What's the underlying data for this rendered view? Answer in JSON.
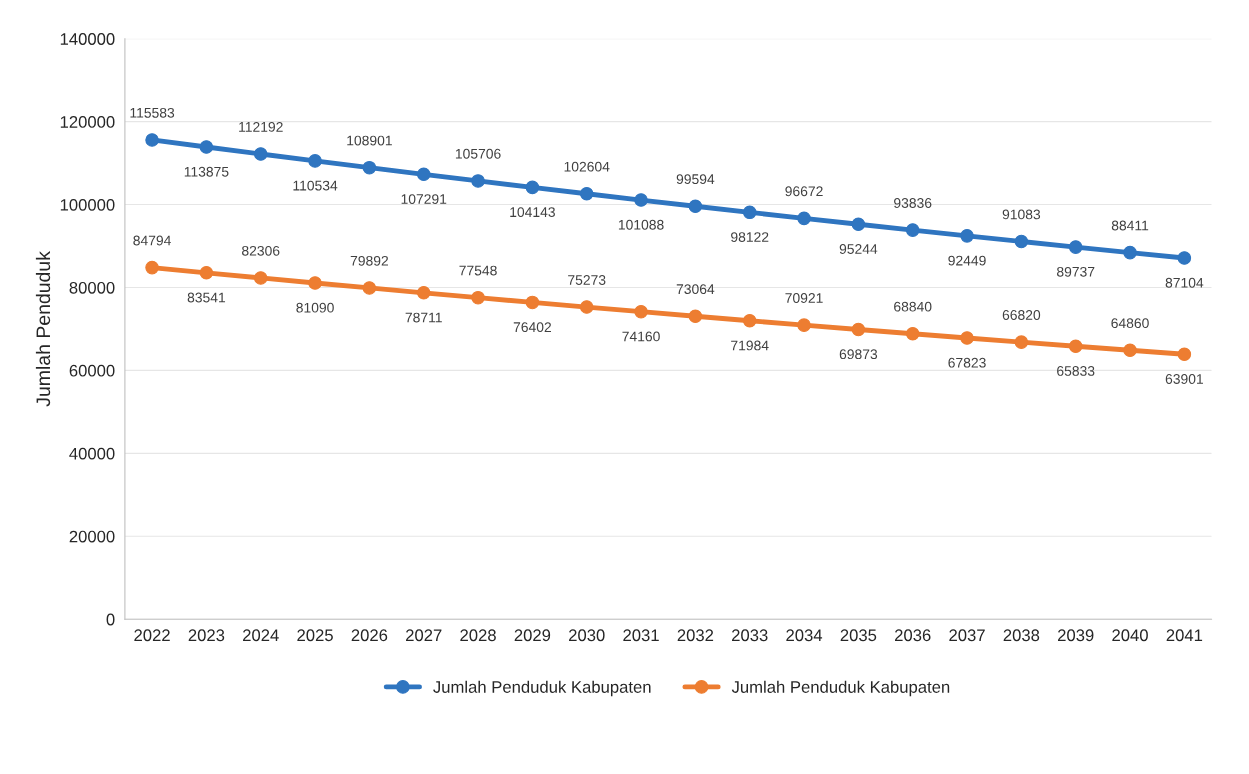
{
  "chart_data": {
    "type": "line",
    "ylabel": "Jumlah Penduduk",
    "categories": [
      "2022",
      "2023",
      "2024",
      "2025",
      "2026",
      "2027",
      "2028",
      "2029",
      "2030",
      "2031",
      "2032",
      "2033",
      "2034",
      "2035",
      "2036",
      "2037",
      "2038",
      "2039",
      "2040",
      "2041"
    ],
    "series": [
      {
        "name": "Jumlah Penduduk Kabupaten",
        "color": "#2f75c0",
        "values": [
          115583,
          113875,
          112192,
          110534,
          108901,
          107291,
          105706,
          104143,
          102604,
          101088,
          99594,
          98122,
          96672,
          95244,
          93836,
          92449,
          91083,
          89737,
          88411,
          87104
        ]
      },
      {
        "name": "Jumlah Penduduk Kabupaten",
        "color": "#ed7d31",
        "values": [
          84794,
          83541,
          82306,
          81090,
          79892,
          78711,
          77548,
          76402,
          75273,
          74160,
          73064,
          71984,
          70921,
          69873,
          68840,
          67823,
          66820,
          65833,
          64860,
          63901
        ]
      }
    ],
    "ylim": [
      0,
      140000
    ],
    "yticks": [
      0,
      20000,
      40000,
      60000,
      80000,
      100000,
      120000,
      140000
    ],
    "data_labels": true,
    "marker": "circle",
    "line_style": "solid",
    "grid": "y",
    "legend": "bottom"
  }
}
